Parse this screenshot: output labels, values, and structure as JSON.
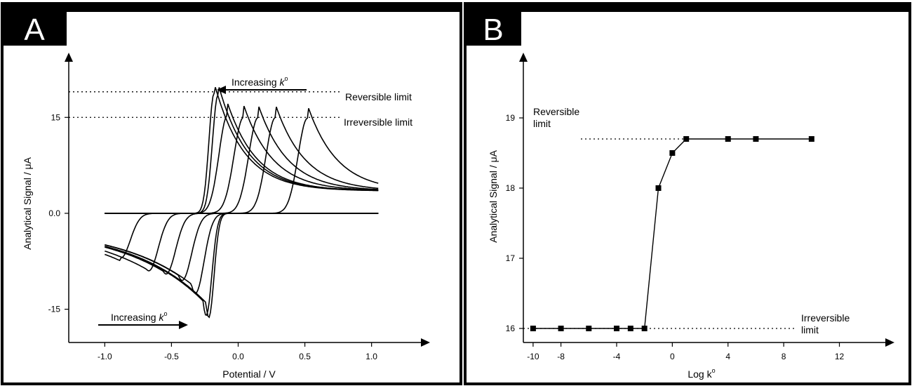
{
  "chart_data": [
    {
      "panel_label": "A",
      "type": "line",
      "xlabel": "Potential / V",
      "ylabel": "Analytical Signal / μA",
      "xlim": [
        -1.27,
        1.37
      ],
      "ylim": [
        -20.2,
        23.7
      ],
      "xticks": [
        -1.0,
        -0.5,
        0.0,
        0.5,
        1.0
      ],
      "xtick_labels": [
        "-1.0",
        "-0.5",
        "0.0",
        "0.5",
        "1.0"
      ],
      "yticks": [
        -15,
        0,
        15
      ],
      "ytick_labels": [
        "-15",
        "0.0",
        "15"
      ],
      "reference_lines": [
        {
          "label": "Reversible limit",
          "y": 19.0
        },
        {
          "label": "Irreversible limit",
          "y": 15.0
        }
      ],
      "annotations": [
        {
          "text": "Increasing ",
          "italic": "k",
          "sup": "o",
          "arrow": "left"
        },
        {
          "text": "Increasing ",
          "italic": "k",
          "sup": "o",
          "arrow": "right"
        }
      ],
      "curves": [
        {
          "ox": -0.18,
          "oa": 18.8,
          "ow": 0.055,
          "rx": -0.22,
          "ra": 16.3,
          "rw": 0.055
        },
        {
          "ox": -0.15,
          "oa": 18.6,
          "ow": 0.06,
          "rx": -0.24,
          "ra": 16.0,
          "rw": 0.06
        },
        {
          "ox": -0.08,
          "oa": 15.3,
          "ow": 0.09,
          "rx": -0.32,
          "ra": 12.5,
          "rw": 0.09
        },
        {
          "ox": 0.04,
          "oa": 15.0,
          "ow": 0.1,
          "rx": -0.42,
          "ra": 10.5,
          "rw": 0.1
        },
        {
          "ox": 0.15,
          "oa": 15.0,
          "ow": 0.1,
          "rx": -0.54,
          "ra": 9.5,
          "rw": 0.1
        },
        {
          "ox": 0.28,
          "oa": 15.0,
          "ow": 0.1,
          "rx": -0.67,
          "ra": 9.0,
          "rw": 0.1
        },
        {
          "ox": 0.52,
          "oa": 14.9,
          "ow": 0.1,
          "rx": -0.88,
          "ra": 7.0,
          "rw": 0.1
        }
      ]
    },
    {
      "panel_label": "B",
      "type": "line",
      "xlabel": "Log k",
      "xlabel_sup": "o",
      "ylabel": "Analytical Signal / μA",
      "xlim": [
        -10.7,
        15.3
      ],
      "ylim": [
        15.8,
        19.8
      ],
      "xticks": [
        -10,
        -8,
        -4,
        0,
        4,
        8,
        12
      ],
      "xtick_labels": [
        "-10",
        "-8",
        "-4",
        "0",
        "4",
        "8",
        "12"
      ],
      "yticks": [
        16,
        17,
        18,
        19
      ],
      "ytick_labels": [
        "16",
        "17",
        "18",
        "19"
      ],
      "reference_lines": [
        {
          "label_lines": [
            "Reversible",
            "limit"
          ],
          "y": 18.7
        },
        {
          "label_lines": [
            "Irreversible",
            "limit"
          ],
          "y": 16.0
        }
      ],
      "series": [
        {
          "x": [
            -10,
            -8,
            -6,
            -4,
            -3,
            -2,
            -1,
            0,
            1,
            4,
            6,
            10
          ],
          "y": [
            16.0,
            16.0,
            16.0,
            16.0,
            16.0,
            16.0,
            18.0,
            18.5,
            18.7,
            18.7,
            18.7,
            18.7
          ]
        }
      ]
    }
  ]
}
